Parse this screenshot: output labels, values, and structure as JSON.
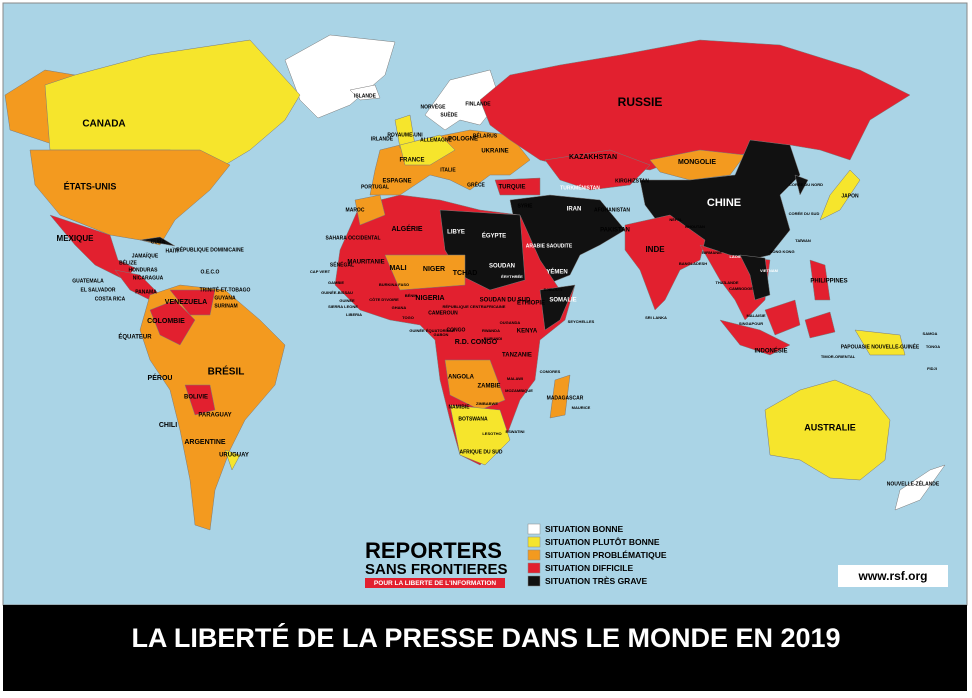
{
  "title": "LA LIBERTÉ DE LA PRESSE DANS LE MONDE EN 2019",
  "logo": {
    "line1": "REPORTERS",
    "line2": "SANS FRONTIERES",
    "tagline": "POUR LA LIBERTE DE L'INFORMATION"
  },
  "url": "www.rsf.org",
  "legend": [
    {
      "label": "SITUATION BONNE",
      "color": "#ffffff"
    },
    {
      "label": "SITUATION PLUTÔT BONNE",
      "color": "#f6e52c"
    },
    {
      "label": "SITUATION PROBLÉMATIQUE",
      "color": "#f39a1f"
    },
    {
      "label": "SITUATION DIFFICILE",
      "color": "#e2202f"
    },
    {
      "label": "SITUATION TRÈS GRAVE",
      "color": "#111111"
    }
  ],
  "labels": [
    "CANADA",
    "ÉTATS-UNIS",
    "MEXIQUE",
    "CUBA",
    "HAÏTI",
    "RÉPUBLIQUE DOMINICAINE",
    "JAMAÏQUE",
    "BÉLIZE",
    "HONDURAS",
    "NICARAGUA",
    "GUATEMALA",
    "EL SALVADOR",
    "COSTA RICA",
    "PANAMA",
    "O.E.C.O",
    "TRINITÉ-ET-TOBAGO",
    "GUYANA",
    "SURINAM",
    "VENEZUELA",
    "COLOMBIE",
    "ÉQUATEUR",
    "PÉROU",
    "BRÉSIL",
    "BOLIVIE",
    "PARAGUAY",
    "CHILI",
    "ARGENTINE",
    "URUGUAY",
    "ISLANDE",
    "NORVÈGE",
    "SUÈDE",
    "FINLANDE",
    "ROYAUME-UNI",
    "IRLANDE",
    "FRANCE",
    "ESPAGNE",
    "PORTUGAL",
    "ALLEMAGNE",
    "POLOGNE",
    "BÉLARUS",
    "UKRAINE",
    "ITALIE",
    "GRÈCE",
    "TURQUIE",
    "RUSSIE",
    "KAZAKHSTAN",
    "MONGOLIE",
    "CHINE",
    "JAPON",
    "CORÉE DU NORD",
    "CORÉE DU SUD",
    "TAÏWAN",
    "HONG KONG",
    "INDE",
    "PAKISTAN",
    "AFGHANISTAN",
    "IRAN",
    "TURKMÉNISTAN",
    "KIRGHIZSTAN",
    "SYRIE",
    "ARABIE SAOUDITE",
    "YÉMEN",
    "ÉGYPTE",
    "LIBYE",
    "ALGÉRIE",
    "MAROC",
    "SAHARA OCCIDENTAL",
    "MAURITANIE",
    "MALI",
    "NIGER",
    "TCHAD",
    "SOUDAN",
    "SOUDAN DU SUD",
    "ÉRYTHRÉE",
    "DJIBOUTI",
    "SOMALIE",
    "ÉTHIOPIE",
    "KENYA",
    "NIGERIA",
    "SÉNÉGAL",
    "CAP VERT",
    "GAMBIE",
    "GUINÉE-BISSAU",
    "GUINÉE",
    "SIERRA LEONE",
    "LIBERIA",
    "CÔTE D'IVOIRE",
    "GHANA",
    "TOGO",
    "BÉNIN",
    "BURKINA FASO",
    "CAMEROUN",
    "RÉPUBLIQUE CENTRAFRICAINE",
    "GABON",
    "GUINÉE ÉQUATORIALE",
    "CONGO",
    "R.D. CONGO",
    "OUGANDA",
    "RWANDA",
    "BURUNDI",
    "TANZANIE",
    "ANGOLA",
    "ZAMBIE",
    "MALAWI",
    "MOZAMBIQUE",
    "ZIMBABWE",
    "NAMIBIE",
    "BOTSWANA",
    "AFRIQUE DU SUD",
    "LESOTHO",
    "ESWATINI",
    "MADAGASCAR",
    "MAURICE",
    "COMORES",
    "SEYCHELLES",
    "SRI LANKA",
    "BANGLADESH",
    "NÉPAL",
    "BHOUTAN",
    "BIRMANIE",
    "LAOS",
    "VIETNAM",
    "THAÏLANDE",
    "CAMBODGE",
    "MALAISIE",
    "SINGAPOUR",
    "INDONÉSIE",
    "PHILIPPINES",
    "TIMOR-ORIENTAL",
    "PAPOUASIE NOUVELLE-GUINÉE",
    "AUSTRALIE",
    "NOUVELLE-ZÉLANDE",
    "FIDJI",
    "SAMOA",
    "TONGA"
  ]
}
